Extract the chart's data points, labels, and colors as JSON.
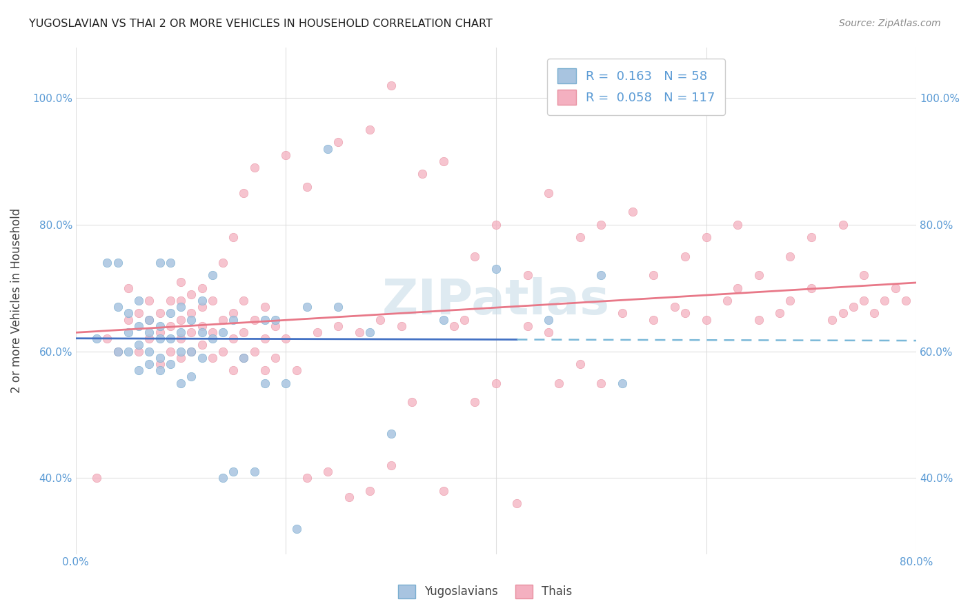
{
  "title": "YUGOSLAVIAN VS THAI 2 OR MORE VEHICLES IN HOUSEHOLD CORRELATION CHART",
  "source": "Source: ZipAtlas.com",
  "ylabel": "2 or more Vehicles in Household",
  "ytick_labels": [
    "40.0%",
    "60.0%",
    "80.0%",
    "100.0%"
  ],
  "ytick_values": [
    0.4,
    0.6,
    0.8,
    1.0
  ],
  "xtick_labels": [
    "0.0%",
    "",
    "",
    "",
    "80.0%"
  ],
  "xtick_values": [
    0.0,
    0.2,
    0.4,
    0.6,
    0.8
  ],
  "xlim": [
    0.0,
    0.8
  ],
  "ylim": [
    0.28,
    1.08
  ],
  "legend_blue_label": "R =  0.163   N = 58",
  "legend_pink_label": "R =  0.058   N = 117",
  "blue_scatter_color": "#a8c4e0",
  "blue_scatter_edge": "#7aaed0",
  "pink_scatter_color": "#f4b0c0",
  "pink_scatter_edge": "#e890a0",
  "line_blue_color": "#4472c4",
  "line_pink_color": "#e87888",
  "line_blue_dashed_color": "#7ab8d8",
  "watermark_color": "#c8dde8",
  "background_color": "#ffffff",
  "tick_color": "#5b9bd5",
  "ylabel_color": "#444444",
  "title_color": "#222222",
  "source_color": "#888888",
  "grid_color": "#d8d8d8",
  "legend_edge_color": "#cccccc",
  "blue_scatter_x": [
    0.02,
    0.03,
    0.04,
    0.04,
    0.04,
    0.05,
    0.05,
    0.05,
    0.06,
    0.06,
    0.06,
    0.06,
    0.07,
    0.07,
    0.07,
    0.07,
    0.08,
    0.08,
    0.08,
    0.08,
    0.08,
    0.09,
    0.09,
    0.09,
    0.09,
    0.1,
    0.1,
    0.1,
    0.1,
    0.11,
    0.11,
    0.11,
    0.12,
    0.12,
    0.12,
    0.13,
    0.13,
    0.14,
    0.14,
    0.15,
    0.15,
    0.16,
    0.17,
    0.18,
    0.18,
    0.19,
    0.2,
    0.21,
    0.22,
    0.24,
    0.25,
    0.28,
    0.3,
    0.35,
    0.4,
    0.45,
    0.5,
    0.52
  ],
  "blue_scatter_y": [
    0.62,
    0.74,
    0.6,
    0.67,
    0.74,
    0.6,
    0.63,
    0.66,
    0.57,
    0.61,
    0.64,
    0.68,
    0.58,
    0.6,
    0.63,
    0.65,
    0.57,
    0.59,
    0.62,
    0.64,
    0.74,
    0.58,
    0.62,
    0.66,
    0.74,
    0.55,
    0.6,
    0.63,
    0.67,
    0.56,
    0.6,
    0.65,
    0.59,
    0.63,
    0.68,
    0.62,
    0.72,
    0.4,
    0.63,
    0.41,
    0.65,
    0.59,
    0.41,
    0.55,
    0.65,
    0.65,
    0.55,
    0.32,
    0.67,
    0.92,
    0.67,
    0.63,
    0.47,
    0.65,
    0.73,
    0.65,
    0.72,
    0.55
  ],
  "pink_scatter_x": [
    0.02,
    0.03,
    0.04,
    0.05,
    0.05,
    0.06,
    0.06,
    0.07,
    0.07,
    0.07,
    0.08,
    0.08,
    0.08,
    0.09,
    0.09,
    0.09,
    0.1,
    0.1,
    0.1,
    0.1,
    0.1,
    0.11,
    0.11,
    0.11,
    0.11,
    0.12,
    0.12,
    0.12,
    0.12,
    0.13,
    0.13,
    0.13,
    0.14,
    0.14,
    0.15,
    0.15,
    0.15,
    0.16,
    0.16,
    0.16,
    0.17,
    0.17,
    0.18,
    0.18,
    0.18,
    0.19,
    0.19,
    0.2,
    0.21,
    0.22,
    0.23,
    0.24,
    0.25,
    0.26,
    0.27,
    0.28,
    0.29,
    0.3,
    0.31,
    0.32,
    0.35,
    0.36,
    0.37,
    0.38,
    0.4,
    0.42,
    0.43,
    0.45,
    0.46,
    0.48,
    0.5,
    0.52,
    0.55,
    0.57,
    0.58,
    0.6,
    0.62,
    0.63,
    0.65,
    0.67,
    0.68,
    0.7,
    0.72,
    0.73,
    0.74,
    0.75,
    0.76,
    0.77,
    0.78,
    0.79,
    0.14,
    0.15,
    0.16,
    0.17,
    0.2,
    0.22,
    0.25,
    0.28,
    0.3,
    0.33,
    0.35,
    0.38,
    0.4,
    0.43,
    0.45,
    0.48,
    0.5,
    0.53,
    0.55,
    0.58,
    0.6,
    0.63,
    0.65,
    0.68,
    0.7,
    0.73,
    0.75
  ],
  "pink_scatter_y": [
    0.4,
    0.62,
    0.6,
    0.65,
    0.7,
    0.6,
    0.66,
    0.62,
    0.65,
    0.68,
    0.58,
    0.63,
    0.66,
    0.6,
    0.64,
    0.68,
    0.59,
    0.62,
    0.65,
    0.68,
    0.71,
    0.6,
    0.63,
    0.66,
    0.69,
    0.61,
    0.64,
    0.67,
    0.7,
    0.59,
    0.63,
    0.68,
    0.6,
    0.65,
    0.57,
    0.62,
    0.66,
    0.59,
    0.63,
    0.68,
    0.6,
    0.65,
    0.57,
    0.62,
    0.67,
    0.59,
    0.64,
    0.62,
    0.57,
    0.4,
    0.63,
    0.41,
    0.64,
    0.37,
    0.63,
    0.38,
    0.65,
    0.42,
    0.64,
    0.52,
    0.38,
    0.64,
    0.65,
    0.52,
    0.55,
    0.36,
    0.64,
    0.63,
    0.55,
    0.58,
    0.55,
    0.66,
    0.65,
    0.67,
    0.66,
    0.65,
    0.68,
    0.7,
    0.65,
    0.66,
    0.68,
    0.7,
    0.65,
    0.66,
    0.67,
    0.68,
    0.66,
    0.68,
    0.7,
    0.68,
    0.74,
    0.78,
    0.85,
    0.89,
    0.91,
    0.86,
    0.93,
    0.95,
    1.02,
    0.88,
    0.9,
    0.75,
    0.8,
    0.72,
    0.85,
    0.78,
    0.8,
    0.82,
    0.72,
    0.75,
    0.78,
    0.8,
    0.72,
    0.75,
    0.78,
    0.8,
    0.72
  ]
}
